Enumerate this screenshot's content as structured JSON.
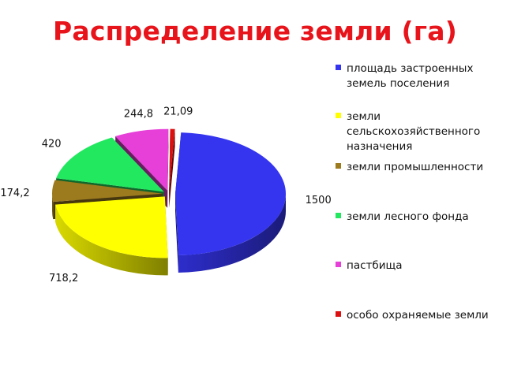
{
  "chart_data": {
    "type": "pie",
    "title": "Распределение земли (га)",
    "categories": [
      "площадь застроенных земель поселения",
      "земли сельскохозяйственного назначения",
      "земли промышленности",
      "земли лесного фонда",
      "пастбища",
      "особо охраняемые земли"
    ],
    "values": [
      1500,
      718.2,
      174.2,
      420,
      244.8,
      21.09
    ],
    "data_labels": [
      "1500",
      "718,2",
      "174,2",
      "420",
      "244,8",
      "21,09"
    ],
    "colors": [
      "#3535f0",
      "#ffff00",
      "#9c7a1e",
      "#22e860",
      "#e640d8",
      "#dc1010"
    ],
    "legend_position": "right",
    "exploded": true,
    "style": "3d"
  },
  "legend": {
    "lines": [
      [
        "площадь застроенных",
        "земель поселения"
      ],
      [
        "земли",
        "сельскохозяйственного",
        "назначения"
      ],
      [
        "земли промышленности"
      ],
      [
        "земли лесного фонда"
      ],
      [
        "пастбища"
      ],
      [
        "особо охраняемые земли"
      ]
    ]
  }
}
